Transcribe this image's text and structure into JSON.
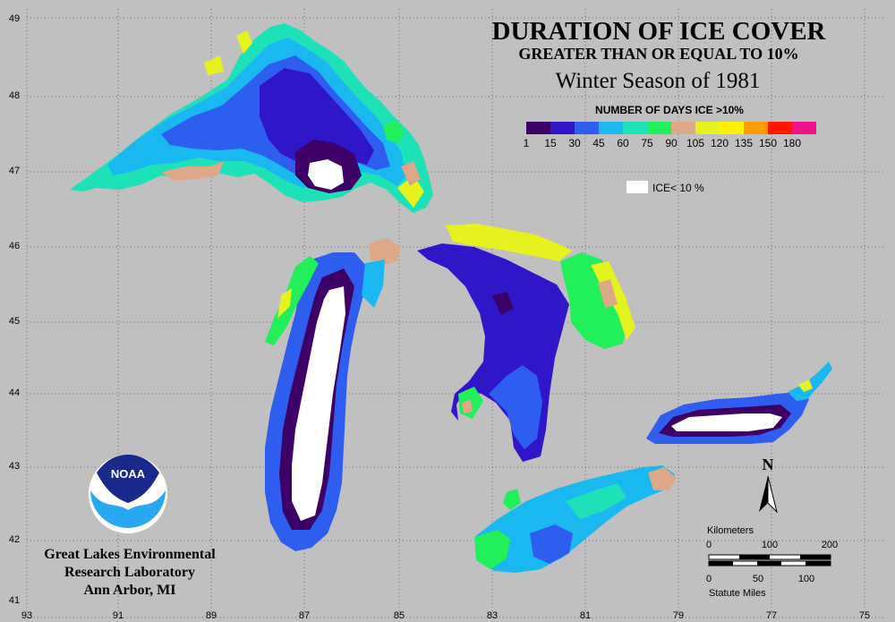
{
  "title": {
    "line1": "DURATION OF ICE COVER",
    "line2": "GREATER THAN OR EQUAL TO 10%",
    "line3": "Winter Season of 1981"
  },
  "legend": {
    "title": "NUMBER OF DAYS ICE >10%",
    "ticks": [
      "1",
      "15",
      "30",
      "45",
      "60",
      "75",
      "90",
      "105",
      "120",
      "135",
      "150",
      "180"
    ],
    "colors": [
      "#3d0067",
      "#2f16c8",
      "#2e5ef0",
      "#1ab8f0",
      "#1de2b8",
      "#21f05a",
      "#dca888",
      "#e6f21e",
      "#fff000",
      "#ff9a00",
      "#ff1800",
      "#f0148c"
    ],
    "ice_less_label": "ICE< 10 %",
    "ice_less_color": "#ffffff"
  },
  "longitude_labels": [
    "93",
    "91",
    "89",
    "87",
    "85",
    "83",
    "81",
    "79",
    "77",
    "75"
  ],
  "latitude_labels": [
    "49",
    "48",
    "47",
    "46",
    "45",
    "44",
    "43",
    "42",
    "41"
  ],
  "north_label": "N",
  "scale_bar": {
    "km_label": "Kilometers",
    "km_ticks": [
      "0",
      "100",
      "200"
    ],
    "mi_ticks": [
      "0",
      "50",
      "100"
    ],
    "mi_label": "Statute Miles"
  },
  "logo_text": "NOAA",
  "credit": {
    "line1": "Great Lakes Environmental",
    "line2": "Research Laboratory",
    "line3": "Ann Arbor, MI"
  }
}
